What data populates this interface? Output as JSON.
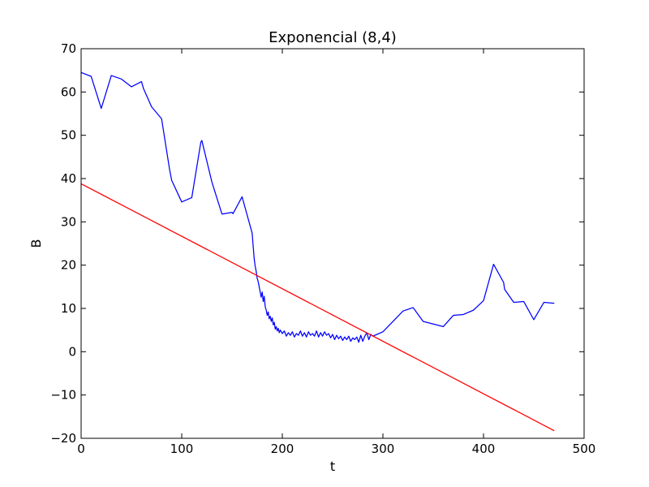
{
  "chart_data": {
    "type": "line",
    "title": "Exponencial (8,4)",
    "xlabel": "t",
    "ylabel": "B",
    "xlim": [
      0,
      500
    ],
    "ylim": [
      -20,
      70
    ],
    "x_ticks": [
      0,
      100,
      200,
      300,
      400,
      500
    ],
    "y_ticks": [
      -20,
      -10,
      0,
      10,
      20,
      30,
      40,
      50,
      60,
      70
    ],
    "x_tick_labels": [
      "0",
      "100",
      "200",
      "300",
      "400",
      "500"
    ],
    "y_tick_labels": [
      "−20",
      "−10",
      "0",
      "10",
      "20",
      "30",
      "40",
      "50",
      "60",
      "70"
    ],
    "grid": false,
    "series": [
      {
        "color": "#0000ff",
        "points": [
          [
            0,
            64.5
          ],
          [
            10,
            63.6
          ],
          [
            20,
            56.2
          ],
          [
            30,
            63.8
          ],
          [
            40,
            63.0
          ],
          [
            50,
            61.2
          ],
          [
            60,
            62.4
          ],
          [
            62,
            60.8
          ],
          [
            70,
            56.6
          ],
          [
            80,
            53.8
          ],
          [
            88,
            42.0
          ],
          [
            90,
            39.6
          ],
          [
            100,
            34.6
          ],
          [
            110,
            35.6
          ],
          [
            119,
            48.4
          ],
          [
            120,
            48.8
          ],
          [
            130,
            39.2
          ],
          [
            140,
            31.8
          ],
          [
            150,
            32.2
          ],
          [
            151,
            31.9
          ],
          [
            160,
            35.8
          ],
          [
            170,
            27.4
          ],
          [
            172,
            21.6
          ],
          [
            173,
            19.8
          ],
          [
            174,
            18.6
          ],
          [
            175,
            17.0
          ],
          [
            176,
            16.2
          ],
          [
            177,
            15.0
          ],
          [
            178,
            13.8
          ],
          [
            179,
            12.6
          ],
          [
            180,
            13.8
          ],
          [
            181,
            11.6
          ],
          [
            182,
            12.8
          ],
          [
            183,
            10.4
          ],
          [
            184,
            9.6
          ],
          [
            185,
            8.4
          ],
          [
            186,
            9.2
          ],
          [
            187,
            7.6
          ],
          [
            188,
            8.2
          ],
          [
            189,
            7.0
          ],
          [
            190,
            7.8
          ],
          [
            191,
            6.2
          ],
          [
            192,
            6.8
          ],
          [
            193,
            5.2
          ],
          [
            194,
            5.8
          ],
          [
            195,
            4.8
          ],
          [
            196,
            5.4
          ],
          [
            197,
            4.4
          ],
          [
            198,
            5.0
          ],
          [
            200,
            4.2
          ],
          [
            202,
            4.8
          ],
          [
            204,
            3.6
          ],
          [
            206,
            4.4
          ],
          [
            208,
            3.8
          ],
          [
            210,
            4.6
          ],
          [
            212,
            3.4
          ],
          [
            214,
            4.2
          ],
          [
            216,
            3.8
          ],
          [
            218,
            4.8
          ],
          [
            220,
            3.6
          ],
          [
            222,
            4.4
          ],
          [
            224,
            3.4
          ],
          [
            226,
            4.6
          ],
          [
            228,
            3.8
          ],
          [
            230,
            4.2
          ],
          [
            232,
            3.6
          ],
          [
            234,
            4.8
          ],
          [
            236,
            3.4
          ],
          [
            238,
            4.4
          ],
          [
            240,
            3.6
          ],
          [
            242,
            4.6
          ],
          [
            244,
            3.8
          ],
          [
            246,
            4.2
          ],
          [
            248,
            3.2
          ],
          [
            250,
            4.0
          ],
          [
            252,
            2.8
          ],
          [
            254,
            3.8
          ],
          [
            256,
            3.0
          ],
          [
            258,
            3.6
          ],
          [
            260,
            2.6
          ],
          [
            262,
            3.4
          ],
          [
            264,
            2.8
          ],
          [
            266,
            3.6
          ],
          [
            268,
            2.4
          ],
          [
            270,
            3.2
          ],
          [
            272,
            2.8
          ],
          [
            274,
            3.4
          ],
          [
            276,
            2.2
          ],
          [
            278,
            3.8
          ],
          [
            280,
            2.4
          ],
          [
            282,
            3.6
          ],
          [
            284,
            4.4
          ],
          [
            286,
            2.8
          ],
          [
            288,
            4.0
          ],
          [
            290,
            3.6
          ],
          [
            300,
            4.6
          ],
          [
            320,
            9.4
          ],
          [
            330,
            10.2
          ],
          [
            340,
            7.0
          ],
          [
            360,
            5.8
          ],
          [
            370,
            8.4
          ],
          [
            380,
            8.6
          ],
          [
            390,
            9.6
          ],
          [
            400,
            11.8
          ],
          [
            410,
            20.2
          ],
          [
            420,
            16.0
          ],
          [
            421,
            14.4
          ],
          [
            430,
            11.4
          ],
          [
            440,
            11.6
          ],
          [
            450,
            7.4
          ],
          [
            460,
            11.4
          ],
          [
            470,
            11.2
          ]
        ]
      },
      {
        "color": "#ff0000",
        "points": [
          [
            0,
            38.8
          ],
          [
            470,
            -18.2
          ]
        ]
      }
    ]
  }
}
